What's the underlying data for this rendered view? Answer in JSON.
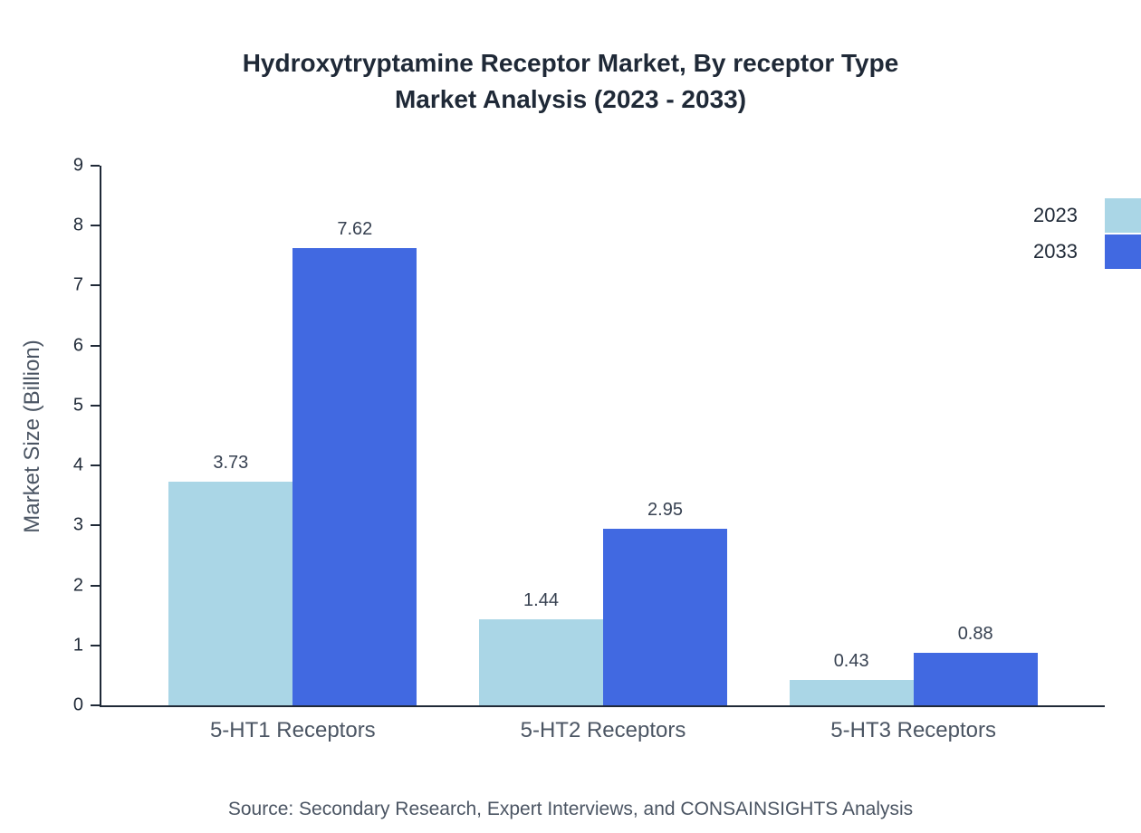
{
  "source": "Source: Secondary Research, Expert Interviews, and CONSAINSIGHTS Analysis",
  "chart_data": {
    "type": "bar",
    "title": "Hydroxytryptamine Receptor Market, By receptor Type\nMarket Analysis (2023 - 2033)",
    "ylabel": "Market Size (Billion)",
    "xlabel": "",
    "ylim": [
      0,
      9
    ],
    "ytick_step": 1,
    "grid": false,
    "legend_position": "top-right",
    "categories": [
      "5-HT1 Receptors",
      "5-HT2 Receptors",
      "5-HT3 Receptors"
    ],
    "series": [
      {
        "name": "2023",
        "color": "#aad6e6",
        "values": [
          3.73,
          1.44,
          0.43
        ]
      },
      {
        "name": "2033",
        "color": "#4169e1",
        "values": [
          7.62,
          2.95,
          0.88
        ]
      }
    ]
  }
}
